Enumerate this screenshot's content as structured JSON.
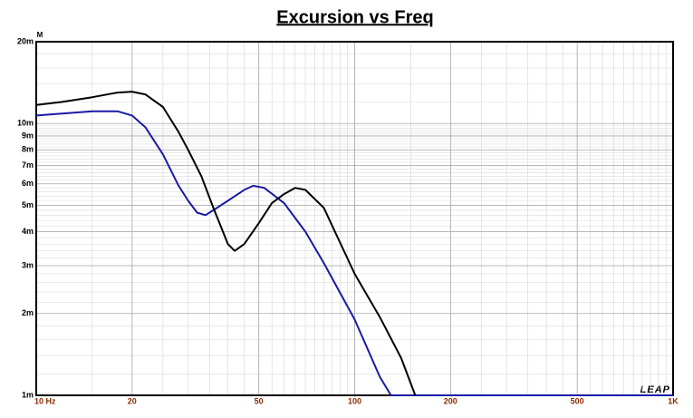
{
  "chart_data": {
    "type": "line",
    "title": "Excursion vs Freq",
    "y_unit_label": "M",
    "watermark": "LEAP",
    "xscale": "log",
    "yscale": "log",
    "grid": true,
    "xlim": [
      10,
      1000
    ],
    "ylim": [
      1,
      20
    ],
    "xticks": [
      {
        "value": 10,
        "label": "10 Hz"
      },
      20,
      50,
      100,
      200,
      500,
      {
        "value": 1000,
        "label": "1K"
      }
    ],
    "yticks": [
      {
        "value": 1,
        "label": "1m"
      },
      {
        "value": 2,
        "label": "2m"
      },
      {
        "value": 3,
        "label": "3m"
      },
      {
        "value": 4,
        "label": "4m"
      },
      {
        "value": 5,
        "label": "5m"
      },
      {
        "value": 6,
        "label": "6m"
      },
      {
        "value": 7,
        "label": "7m"
      },
      {
        "value": 8,
        "label": "8m"
      },
      {
        "value": 9,
        "label": "9m"
      },
      {
        "value": 10,
        "label": "10m"
      },
      {
        "value": 20,
        "label": "20m"
      }
    ],
    "series": [
      {
        "color": "#000000",
        "x": [
          10,
          12,
          15,
          18,
          20,
          22,
          25,
          28,
          30,
          33,
          36,
          40,
          42,
          45,
          50,
          55,
          60,
          65,
          70,
          80,
          100,
          120,
          140,
          155
        ],
        "values": [
          11.7,
          12.0,
          12.5,
          13.0,
          13.1,
          12.8,
          11.5,
          9.3,
          8.0,
          6.4,
          4.9,
          3.6,
          3.4,
          3.6,
          4.3,
          5.1,
          5.5,
          5.8,
          5.7,
          4.9,
          2.8,
          1.94,
          1.37,
          1.0
        ]
      },
      {
        "color": "#1a1aa6",
        "x": [
          10,
          15,
          18,
          20,
          22,
          25,
          28,
          30,
          32,
          34,
          37,
          40,
          45,
          48,
          52,
          60,
          70,
          80,
          100,
          120,
          130,
          200,
          500,
          1000
        ],
        "values": [
          10.7,
          11.1,
          11.1,
          10.7,
          9.7,
          7.7,
          5.9,
          5.2,
          4.7,
          4.6,
          4.9,
          5.2,
          5.7,
          5.9,
          5.8,
          5.1,
          4.0,
          3.07,
          1.9,
          1.17,
          1.0,
          1.0,
          1.0,
          1.0
        ]
      }
    ]
  }
}
